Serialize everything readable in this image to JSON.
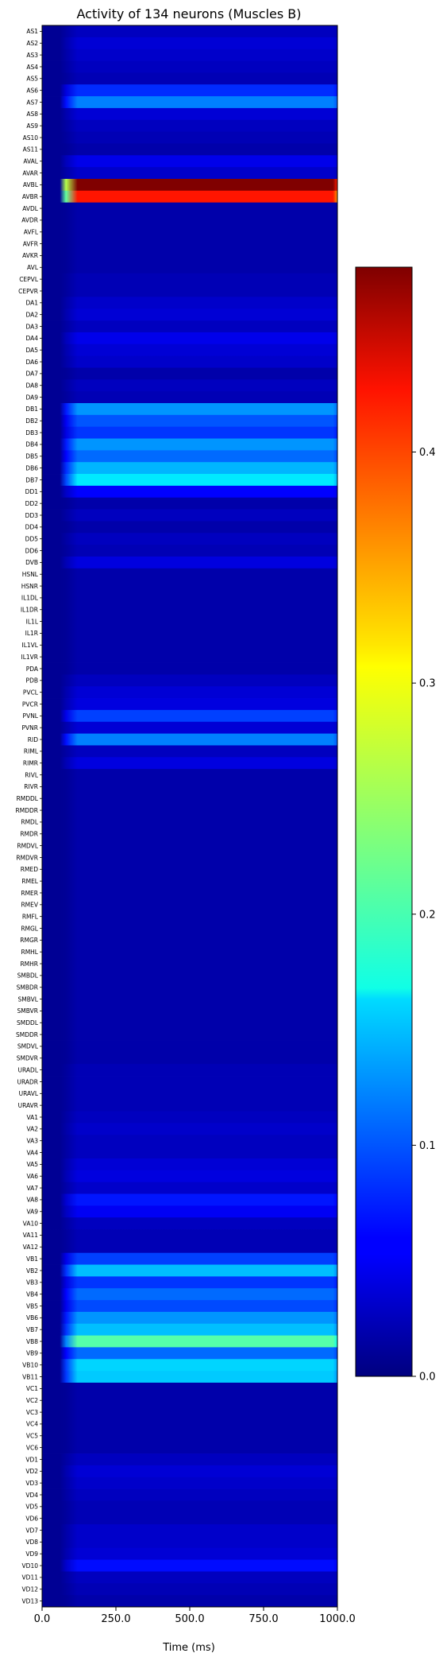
{
  "chart_data": {
    "type": "heatmap",
    "title": "Activity of 134 neurons (Muscles B)",
    "xlabel": "Time (ms)",
    "ylabel": "",
    "x_ticks": [
      "0.0",
      "250.0",
      "500.0",
      "750.0",
      "1000.0"
    ],
    "xlim": [
      0,
      1000
    ],
    "colorbar": {
      "colormap": "jet",
      "range": [
        0.0,
        0.48
      ],
      "ticks": [
        0.0,
        0.1,
        0.2,
        0.3,
        0.4
      ],
      "tick_labels": [
        "0.0",
        "0.1",
        "0.2",
        "0.3",
        "0.4"
      ]
    },
    "onset_ms": 60,
    "ramp_ms": 60,
    "neurons": [
      "AS1",
      "AS2",
      "AS3",
      "AS4",
      "AS5",
      "AS6",
      "AS7",
      "AS8",
      "AS9",
      "AS10",
      "AS11",
      "AVAL",
      "AVAR",
      "AVBL",
      "AVBR",
      "AVDL",
      "AVDR",
      "AVFL",
      "AVFR",
      "AVKR",
      "AVL",
      "CEPVL",
      "CEPVR",
      "DA1",
      "DA2",
      "DA3",
      "DA4",
      "DA5",
      "DA6",
      "DA7",
      "DA8",
      "DA9",
      "DB1",
      "DB2",
      "DB3",
      "DB4",
      "DB5",
      "DB6",
      "DB7",
      "DD1",
      "DD2",
      "DD3",
      "DD4",
      "DD5",
      "DD6",
      "DVB",
      "HSNL",
      "HSNR",
      "IL1DL",
      "IL1DR",
      "IL1L",
      "IL1R",
      "IL1VL",
      "IL1VR",
      "PDA",
      "PDB",
      "PVCL",
      "PVCR",
      "PVNL",
      "PVNR",
      "RID",
      "RIML",
      "RIMR",
      "RIVL",
      "RIVR",
      "RMDDL",
      "RMDDR",
      "RMDL",
      "RMDR",
      "RMDVL",
      "RMDVR",
      "RMED",
      "RMEL",
      "RMER",
      "RMEV",
      "RMFL",
      "RMGL",
      "RMGR",
      "RMHL",
      "RMHR",
      "SMBDL",
      "SMBDR",
      "SMBVL",
      "SMBVR",
      "SMDDL",
      "SMDDR",
      "SMDVL",
      "SMDVR",
      "URADL",
      "URADR",
      "URAVL",
      "URAVR",
      "VA1",
      "VA2",
      "VA3",
      "VA4",
      "VA5",
      "VA6",
      "VA7",
      "VA8",
      "VA9",
      "VA10",
      "VA11",
      "VA12",
      "VB1",
      "VB2",
      "VB3",
      "VB4",
      "VB5",
      "VB6",
      "VB7",
      "VB8",
      "VB9",
      "VB10",
      "VB11",
      "VC1",
      "VC2",
      "VC3",
      "VC4",
      "VC5",
      "VC6",
      "VD1",
      "VD2",
      "VD3",
      "VD4",
      "VD5",
      "VD6",
      "VD7",
      "VD8",
      "VD9",
      "VD10",
      "VD11",
      "VD12",
      "VD13"
    ],
    "activity": [
      0.03,
      0.04,
      0.035,
      0.03,
      0.025,
      0.08,
      0.12,
      0.04,
      0.03,
      0.025,
      0.02,
      0.05,
      0.035,
      0.48,
      0.41,
      0.02,
      0.02,
      0.02,
      0.02,
      0.02,
      0.02,
      0.025,
      0.025,
      0.035,
      0.04,
      0.03,
      0.05,
      0.04,
      0.035,
      0.02,
      0.03,
      0.025,
      0.13,
      0.1,
      0.085,
      0.13,
      0.11,
      0.145,
      0.17,
      0.06,
      0.02,
      0.03,
      0.02,
      0.03,
      0.025,
      0.045,
      0.02,
      0.02,
      0.02,
      0.02,
      0.02,
      0.02,
      0.02,
      0.02,
      0.02,
      0.03,
      0.04,
      0.045,
      0.09,
      0.04,
      0.12,
      0.03,
      0.045,
      0.02,
      0.02,
      0.02,
      0.02,
      0.02,
      0.02,
      0.02,
      0.02,
      0.02,
      0.02,
      0.02,
      0.02,
      0.02,
      0.02,
      0.02,
      0.02,
      0.02,
      0.02,
      0.02,
      0.02,
      0.02,
      0.02,
      0.02,
      0.02,
      0.02,
      0.025,
      0.025,
      0.025,
      0.025,
      0.03,
      0.035,
      0.03,
      0.03,
      0.04,
      0.045,
      0.035,
      0.07,
      0.055,
      0.03,
      0.025,
      0.025,
      0.09,
      0.15,
      0.085,
      0.11,
      0.095,
      0.13,
      0.15,
      0.22,
      0.11,
      0.16,
      0.155,
      0.02,
      0.02,
      0.02,
      0.02,
      0.02,
      0.02,
      0.03,
      0.04,
      0.035,
      0.03,
      0.025,
      0.025,
      0.035,
      0.035,
      0.04,
      0.065,
      0.03,
      0.025,
      0.02
    ]
  }
}
